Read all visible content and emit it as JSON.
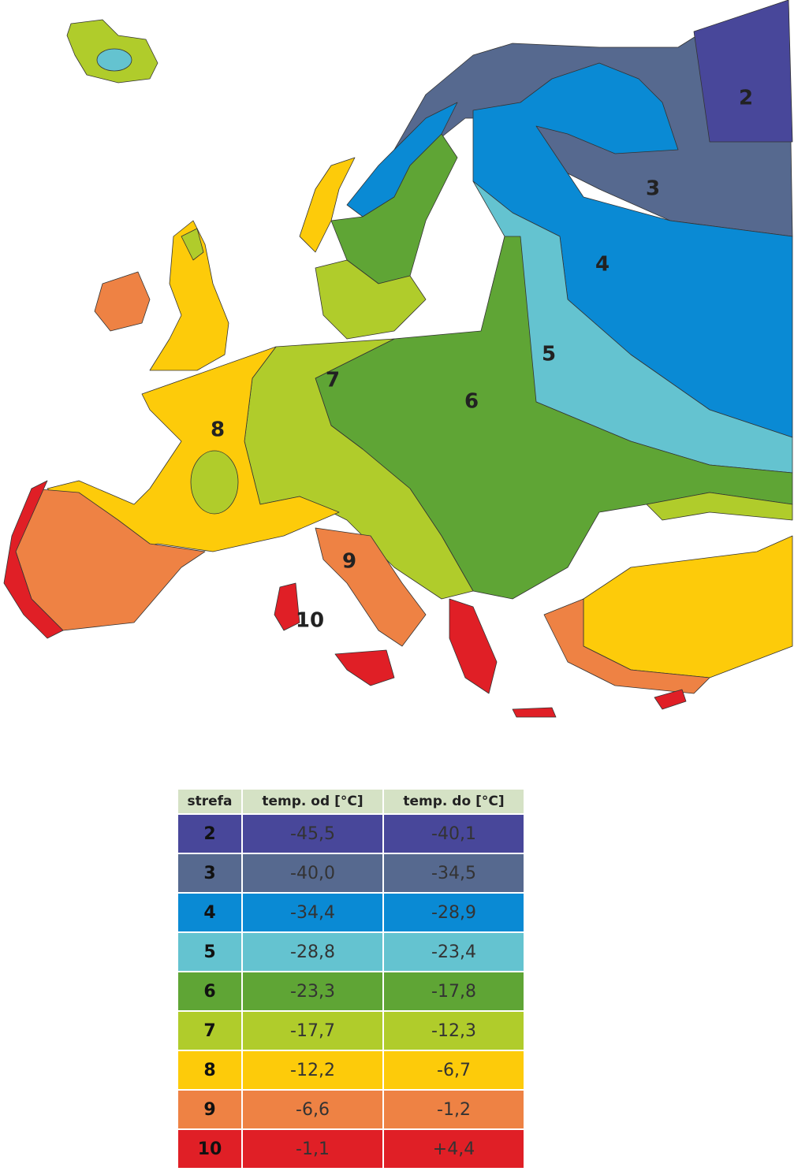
{
  "map": {
    "zone_labels": [
      "2",
      "3",
      "4",
      "5",
      "6",
      "7",
      "8",
      "9",
      "10"
    ]
  },
  "table": {
    "header": [
      "strefa",
      "temp. od [°C]",
      "temp. do [°C]"
    ],
    "rows": [
      [
        "2",
        "-45,5",
        "-40,1"
      ],
      [
        "3",
        "-40,0",
        "-34,5"
      ],
      [
        "4",
        "-34,4",
        "-28,9"
      ],
      [
        "5",
        "-28,8",
        "-23,4"
      ],
      [
        "6",
        "-23,3",
        "-17,8"
      ],
      [
        "7",
        "-17,7",
        "-12,3"
      ],
      [
        "8",
        "-12,2",
        "-6,7"
      ],
      [
        "9",
        "-6,6",
        "-1,2"
      ],
      [
        "10",
        "-1,1",
        "+4,4"
      ]
    ],
    "row_colors": [
      "#48479a",
      "#56698f",
      "#0a8ad4",
      "#64c3d0",
      "#5fa535",
      "#b0cc2b",
      "#fdcb0a",
      "#ee8244",
      "#e01f26"
    ]
  }
}
